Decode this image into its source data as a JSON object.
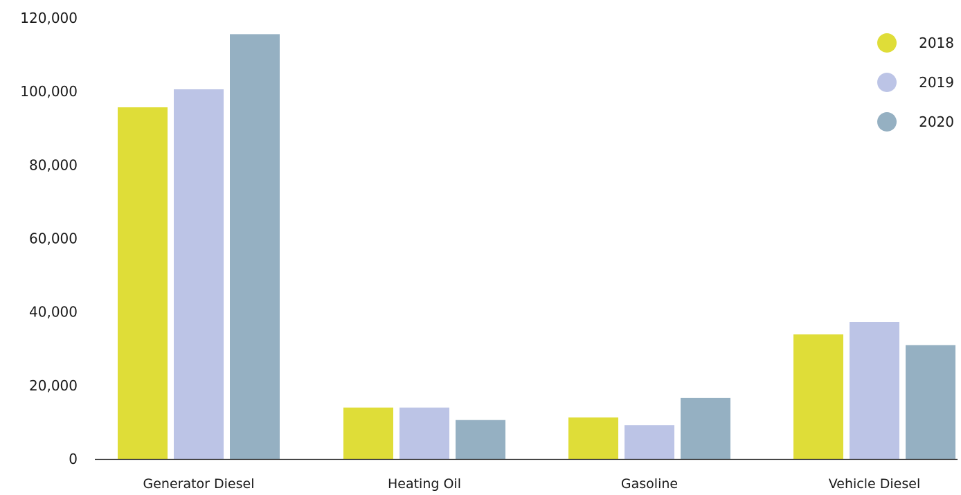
{
  "chart_data": {
    "type": "bar",
    "title": "",
    "xlabel": "",
    "ylabel": "",
    "categories": [
      "Generator Diesel",
      "Heating Oil",
      "Gasoline",
      "Vehicle Diesel"
    ],
    "series": [
      {
        "name": "2018",
        "color": "#dfdd38",
        "values": [
          95700,
          14000,
          11300,
          33900
        ]
      },
      {
        "name": "2019",
        "color": "#bcc4e6",
        "values": [
          100600,
          14000,
          9200,
          37300
        ]
      },
      {
        "name": "2020",
        "color": "#95b0c2",
        "values": [
          115600,
          10600,
          16600,
          31000
        ]
      }
    ],
    "ylim": [
      0,
      120000
    ],
    "yticks": [
      0,
      20000,
      40000,
      60000,
      80000,
      100000,
      120000
    ],
    "ytick_labels": [
      "0",
      "20,000",
      "40,000",
      "60,000",
      "80,000",
      "100,000",
      "120,000"
    ],
    "grid": false,
    "legend": {
      "placement": "top-right"
    }
  }
}
